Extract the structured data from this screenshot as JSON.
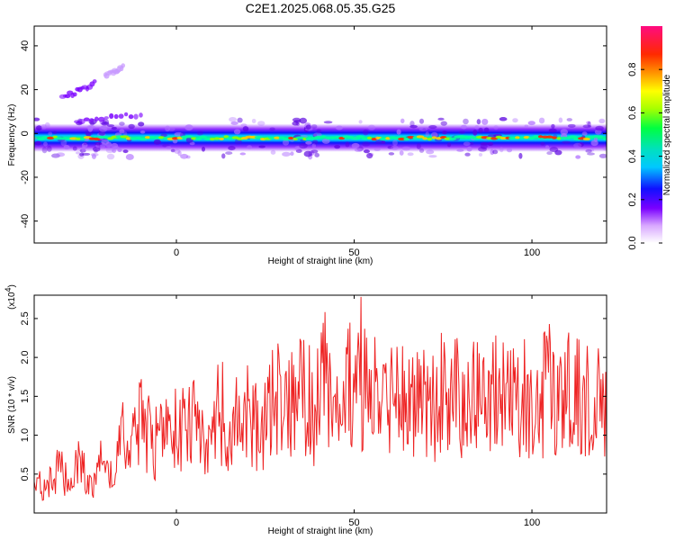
{
  "title": "C2E1.2025.068.05.35.G25",
  "chart_data": [
    {
      "type": "heatmap",
      "xlabel": "Height of straight line (km)",
      "ylabel": "Frequency (Hz)",
      "xlim": [
        -40,
        121
      ],
      "ylim": [
        -50,
        49
      ],
      "x_ticks": [
        "0",
        "50",
        "100"
      ],
      "y_ticks": [
        "-40",
        "-20",
        "0",
        "20",
        "40"
      ],
      "colorbar": {
        "label": "Normalized spectral amplitude",
        "range": [
          0.0,
          1.0
        ],
        "ticks": [
          "0.0",
          "0.2",
          "0.4",
          "0.6",
          "0.8"
        ]
      },
      "features": [
        {
          "x": [
            -40,
            121
          ],
          "frequency_center": -2,
          "frequency_halfwidth": 4,
          "amplitude_range": [
            0.2,
            0.8
          ],
          "note": "horizontal band near 0 Hz with maxima ~0.75 near x=85"
        },
        {
          "x": [
            -32,
            -23
          ],
          "frequency": [
            16,
            23
          ],
          "amplitude": 0.1
        },
        {
          "x": [
            -20,
            -15
          ],
          "frequency": [
            26,
            30
          ],
          "amplitude": 0.05
        },
        {
          "x": [
            -28,
            -10
          ],
          "frequency_center": 7,
          "amplitude": 0.1
        }
      ],
      "grid": false
    },
    {
      "type": "line",
      "xlabel": "Height of straight line (km)",
      "ylabel": "SNR (10 * v/v)",
      "y_multiplier_label": "(x10",
      "y_multiplier_exp": "4",
      "xlim": [
        -40,
        121
      ],
      "ylim": [
        0,
        2.8
      ],
      "x_ticks": [
        "0",
        "50",
        "100"
      ],
      "y_ticks": [
        "0.5",
        "1.0",
        "1.5",
        "2.0",
        "2.5"
      ],
      "color": "#ee2222",
      "series": [
        {
          "x": [
            -40,
            -37,
            -33,
            -30,
            -27,
            -24,
            -21,
            -18,
            -15,
            -13,
            -10,
            -7,
            -3,
            0,
            3,
            6,
            9,
            12,
            15,
            18,
            21,
            24,
            27,
            30,
            33,
            36,
            39,
            42,
            45,
            48,
            51,
            54,
            57,
            60,
            63,
            66,
            69,
            72,
            75,
            78,
            81,
            84,
            87,
            90,
            93,
            96,
            99,
            102,
            105,
            108,
            111,
            114,
            117,
            120
          ],
          "values": [
            0.45,
            0.3,
            0.6,
            0.35,
            0.7,
            0.3,
            0.65,
            0.4,
            1.0,
            0.75,
            1.2,
            0.9,
            0.95,
            1.2,
            1.0,
            1.35,
            0.8,
            1.45,
            1.0,
            1.3,
            1.25,
            1.05,
            1.5,
            1.4,
            1.5,
            1.6,
            1.3,
            1.7,
            1.55,
            1.5,
            2.0,
            1.4,
            1.6,
            1.5,
            1.65,
            1.35,
            1.55,
            1.4,
            1.65,
            1.5,
            1.45,
            1.55,
            1.5,
            1.6,
            1.35,
            1.55,
            1.45,
            1.5,
            1.6,
            1.35,
            1.55,
            1.5,
            1.45,
            1.6
          ]
        }
      ],
      "grid": false
    }
  ]
}
